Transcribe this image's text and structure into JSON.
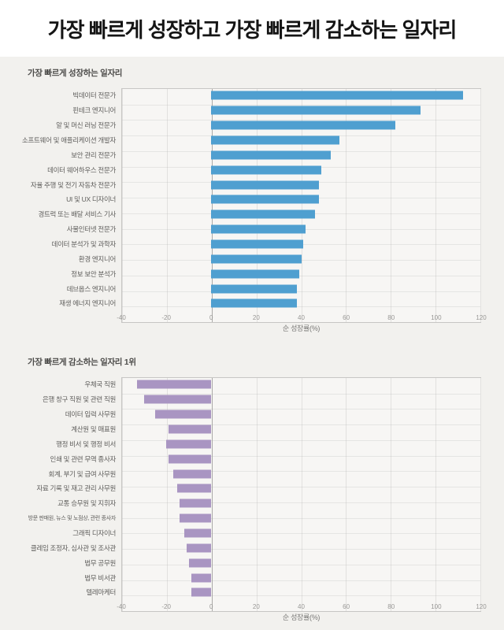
{
  "page": {
    "title": "가장 빠르게 성장하고 가장 빠르게 감소하는 일자리"
  },
  "chart_data": [
    {
      "type": "bar",
      "orientation": "horizontal",
      "title": "가장 빠르게 성장하는 일자리",
      "xlabel": "순 성장률(%)",
      "xlim": [
        -40,
        120
      ],
      "xticks": [
        -40,
        -20,
        0,
        20,
        40,
        60,
        80,
        100,
        120
      ],
      "grid": true,
      "legend": "none",
      "bar_color": "#4f9fd0",
      "categories": [
        "빅데이터 전문가",
        "핀테크 엔지니어",
        "알 및 머신 러닝 전문가",
        "소프트웨어 및 애플리케이션 개발자",
        "보안 관리 전문가",
        "데이터 웨어하우스 전문가",
        "자율 주행 및 전기 자동차 전문가",
        "UI 및 UX 디자이너",
        "경트럭 또는 배달 서비스 기사",
        "사물인터넷 전문가",
        "데이터 분석가 및 과학자",
        "환경 엔지니어",
        "정보 보안 분석가",
        "데브옵스 엔지니어",
        "재생 에너지 엔지니어"
      ],
      "values": [
        112,
        93,
        82,
        57,
        53,
        49,
        48,
        48,
        46,
        42,
        41,
        40,
        39,
        38,
        38
      ]
    },
    {
      "type": "bar",
      "orientation": "horizontal",
      "title": "가장 빠르게 감소하는 일자리 1위",
      "xlabel": "순 성장률(%)",
      "xlim": [
        -40,
        120
      ],
      "xticks": [
        -40,
        -20,
        0,
        20,
        40,
        60,
        80,
        100,
        120
      ],
      "grid": true,
      "legend": "none",
      "bar_color": "#a995c2",
      "categories": [
        "우체국 직원",
        "은행 창구 직원 및 관련 직원",
        "데이터 입력 사무원",
        "계산원 및 매표원",
        "행정 비서 및 행정 비서",
        "인쇄 및 관련 무역 종사자",
        "회계, 부기 및 급여 사무원",
        "자료 기록 및 재고 관리 사무원",
        "교통 승무원 및 지휘자",
        "방문 판매원, 뉴스 및 노점상, 관련 종사자",
        "그래픽 디자이너",
        "클레임 조정자, 심사관 및 조사관",
        "법무 공무원",
        "법무 비서관",
        "텔레마케터"
      ],
      "values": [
        -33,
        -30,
        -25,
        -19,
        -20,
        -19,
        -17,
        -15,
        -14,
        -14,
        -12,
        -11,
        -10,
        -9,
        -9
      ]
    }
  ]
}
